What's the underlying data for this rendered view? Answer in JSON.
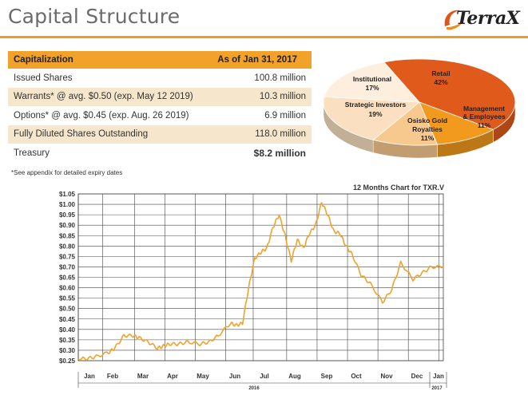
{
  "header": {
    "title": "Capital Structure",
    "logo_text": "TerraX"
  },
  "table": {
    "header": {
      "label": "Capitalization",
      "value": "As of Jan 31, 2017"
    },
    "rows": [
      {
        "label": "Issued Shares",
        "value": "100.8 million"
      },
      {
        "label": "Warrants* @ avg. $0.50 (exp. May 12 2019)",
        "value": "10.3 million"
      },
      {
        "label": "Options* @ avg. $0.45 (exp. Aug. 26 2019)",
        "value": "6.9 million"
      },
      {
        "label": "Fully Diluted Shares Outstanding",
        "value": "118.0 million"
      },
      {
        "label": "Treasury",
        "value": "$8.2 million"
      }
    ],
    "footnote": "*See appendix for detailed expiry dates"
  },
  "chart_data": [
    {
      "type": "pie",
      "slices": [
        {
          "label": "Retail",
          "value": 42,
          "display": "42%",
          "color": "#e05a1c"
        },
        {
          "label": "Management & Employees",
          "value": 11,
          "display": "11%",
          "color": "#f19a1e"
        },
        {
          "label": "Osisko Gold Royalties",
          "value": 11,
          "display": "11%",
          "color": "#f7c98f"
        },
        {
          "label": "Strategic Investors",
          "value": 19,
          "display": "19%",
          "color": "#fae0c0"
        },
        {
          "label": "Institutional",
          "value": 17,
          "display": "17%",
          "color": "#fdeedd"
        }
      ]
    },
    {
      "type": "line",
      "title": "12 Months Chart for TXR.V",
      "color": "#f2a22b",
      "ylim": [
        0.25,
        1.05
      ],
      "yticks": [
        "$1.05",
        "$1.00",
        "$0.95",
        "$0.90",
        "$0.85",
        "$0.80",
        "$0.75",
        "$0.70",
        "$0.65",
        "$0.60",
        "$0.55",
        "$0.50",
        "$0.45",
        "$0.40",
        "$0.35",
        "$0.30",
        "$0.25"
      ],
      "xticks": [
        "Jan",
        "Feb",
        "Mar",
        "Apr",
        "May",
        "Jun",
        "Jul",
        "Aug",
        "Sep",
        "Oct",
        "Nov",
        "Dec",
        "Jan"
      ],
      "year_labels": [
        "2016",
        "2017"
      ],
      "series": [
        {
          "x_month": [
            0,
            0.3,
            0.6,
            1,
            1.2,
            1.5,
            1.8,
            2,
            2.3,
            2.6,
            2.8,
            3,
            3.3,
            3.6,
            4,
            4.3,
            4.6,
            5,
            5.2,
            5.4,
            5.6,
            5.8,
            6,
            6.2,
            6.4,
            6.6,
            6.8,
            7,
            7.2,
            7.4,
            7.6,
            7.8,
            8,
            8.2,
            8.4,
            8.6,
            8.8,
            9,
            9.3,
            9.6,
            10,
            10.3,
            10.6,
            11,
            11.3,
            11.6,
            12
          ],
          "y": [
            0.26,
            0.26,
            0.27,
            0.29,
            0.31,
            0.37,
            0.37,
            0.36,
            0.34,
            0.31,
            0.32,
            0.33,
            0.33,
            0.34,
            0.33,
            0.34,
            0.37,
            0.43,
            0.42,
            0.43,
            0.6,
            0.74,
            0.77,
            0.79,
            0.89,
            0.95,
            0.85,
            0.73,
            0.83,
            0.79,
            0.86,
            0.9,
            1.01,
            0.95,
            0.87,
            0.86,
            0.8,
            0.76,
            0.66,
            0.62,
            0.53,
            0.59,
            0.72,
            0.64,
            0.67,
            0.7,
            0.7
          ]
        }
      ]
    }
  ]
}
